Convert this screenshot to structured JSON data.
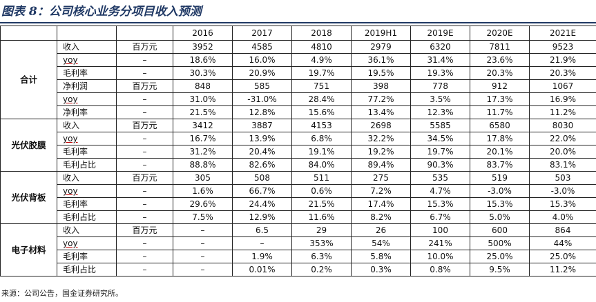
{
  "title": "图表 8：公司核心业务分项目收入预测",
  "columns": [
    "",
    "",
    "",
    "2016",
    "2017",
    "2018",
    "2019H1",
    "2019E",
    "2020E",
    "2021E"
  ],
  "groups": [
    {
      "name": "合计",
      "rows": [
        {
          "metric": "收入",
          "unit": "百万元",
          "values": [
            "3952",
            "4585",
            "4810",
            "2979",
            "6320",
            "7811",
            "9523"
          ]
        },
        {
          "metric": "yoy",
          "unit": "–",
          "values": [
            "18.6%",
            "16.0%",
            "4.9%",
            "36.1%",
            "31.4%",
            "23.6%",
            "21.9%"
          ]
        },
        {
          "metric": "毛利率",
          "unit": "–",
          "values": [
            "30.3%",
            "20.9%",
            "19.7%",
            "19.5%",
            "19.3%",
            "20.3%",
            "20.3%"
          ]
        },
        {
          "metric": "净利润",
          "unit": "百万元",
          "values": [
            "848",
            "585",
            "751",
            "398",
            "778",
            "912",
            "1067"
          ]
        },
        {
          "metric": "yoy",
          "unit": "–",
          "values": [
            "31.0%",
            "-31.0%",
            "28.4%",
            "77.2%",
            "3.5%",
            "17.3%",
            "16.9%"
          ]
        },
        {
          "metric": "净利率",
          "unit": "–",
          "values": [
            "21.5%",
            "12.8%",
            "15.6%",
            "13.4%",
            "12.3%",
            "11.7%",
            "11.2%"
          ]
        }
      ]
    },
    {
      "name": "光伏胶膜",
      "rows": [
        {
          "metric": "收入",
          "unit": "百万元",
          "values": [
            "3412",
            "3887",
            "4153",
            "2698",
            "5585",
            "6580",
            "8030"
          ]
        },
        {
          "metric": "yoy",
          "unit": "–",
          "values": [
            "16.7%",
            "13.9%",
            "6.8%",
            "32.2%",
            "34.5%",
            "17.8%",
            "22.0%"
          ]
        },
        {
          "metric": "毛利率",
          "unit": "–",
          "values": [
            "31.2%",
            "20.4%",
            "19.1%",
            "19.2%",
            "19.7%",
            "20.1%",
            "20.0%"
          ]
        },
        {
          "metric": "毛利占比",
          "unit": "–",
          "values": [
            "88.8%",
            "82.6%",
            "84.0%",
            "89.4%",
            "90.3%",
            "83.7%",
            "83.1%"
          ]
        }
      ]
    },
    {
      "name": "光伏背板",
      "rows": [
        {
          "metric": "收入",
          "unit": "百万元",
          "values": [
            "305",
            "508",
            "511",
            "275",
            "535",
            "519",
            "503"
          ]
        },
        {
          "metric": "yoy",
          "unit": "–",
          "values": [
            "1.6%",
            "66.7%",
            "0.6%",
            "7.2%",
            "4.7%",
            "-3.0%",
            "-3.0%"
          ]
        },
        {
          "metric": "毛利率",
          "unit": "–",
          "values": [
            "29.6%",
            "24.4%",
            "21.5%",
            "17.4%",
            "15.3%",
            "15.3%",
            "15.3%"
          ]
        },
        {
          "metric": "毛利占比",
          "unit": "–",
          "values": [
            "7.5%",
            "12.9%",
            "11.6%",
            "8.2%",
            "6.7%",
            "5.0%",
            "4.0%"
          ]
        }
      ]
    },
    {
      "name": "电子材料",
      "rows": [
        {
          "metric": "收入",
          "unit": "百万元",
          "values": [
            "–",
            "6.5",
            "29",
            "26",
            "100",
            "600",
            "864"
          ]
        },
        {
          "metric": "yoy",
          "unit": "–",
          "values": [
            "–",
            "–",
            "353%",
            "54%",
            "241%",
            "500%",
            "44%"
          ]
        },
        {
          "metric": "毛利率",
          "unit": "–",
          "values": [
            "–",
            "1.9%",
            "6.3%",
            "5.8%",
            "10.0%",
            "25.0%",
            "25.0%"
          ]
        },
        {
          "metric": "毛利占比",
          "unit": "–",
          "values": [
            "–",
            "0.01%",
            "0.2%",
            "0.3%",
            "0.8%",
            "9.5%",
            "11.2%"
          ]
        }
      ]
    }
  ],
  "source": "来源：公司公告，国金证券研究所。"
}
